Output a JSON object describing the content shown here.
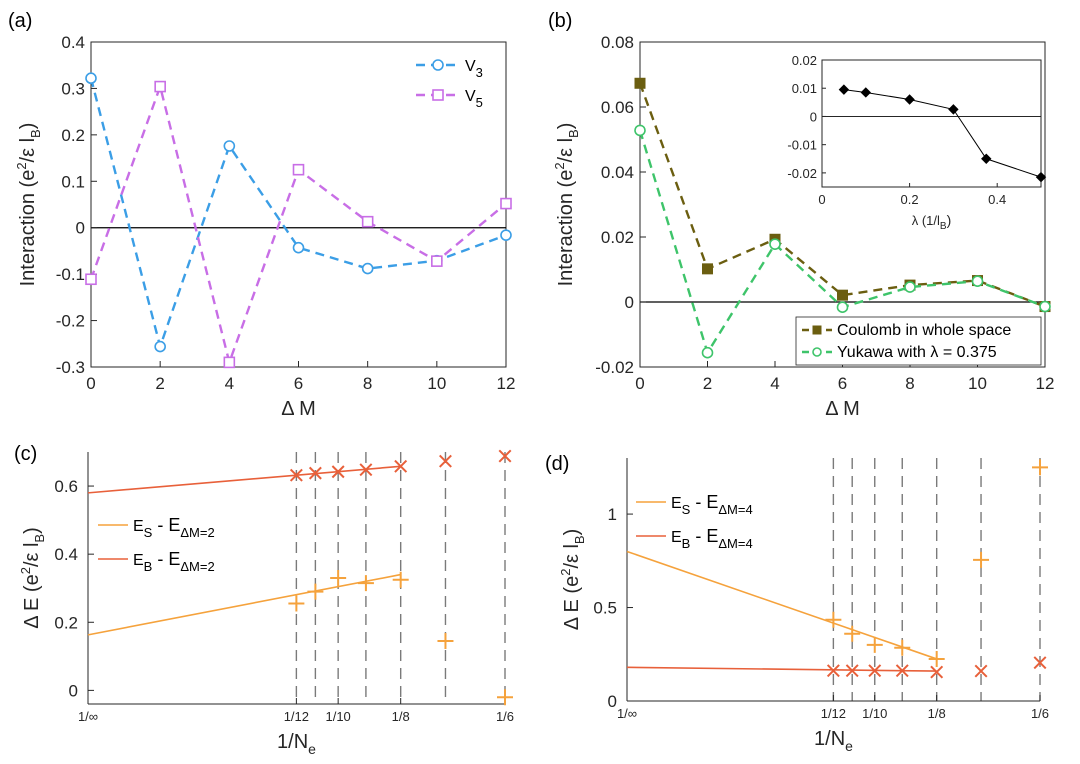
{
  "chart_data": [
    {
      "id": "a",
      "panel_label": "(a)",
      "type": "line",
      "xlabel": "Δ M",
      "ylabel_main": "Interaction (e",
      "ylabel_sup": "2",
      "ylabel_mid": "/ε l",
      "ylabel_sub": "B",
      "ylabel_end": ")",
      "xlim": [
        0,
        12
      ],
      "ylim": [
        -0.3,
        0.4
      ],
      "xticks": [
        0,
        2,
        4,
        6,
        8,
        10,
        12
      ],
      "yticks": [
        -0.3,
        -0.2,
        -0.1,
        0,
        0.1,
        0.2,
        0.3,
        0.4
      ],
      "ytick_labels": [
        "-0.3",
        "-0.2",
        "-0.1",
        "0",
        "0.1",
        "0.2",
        "0.3",
        "0.4"
      ],
      "zero_line": true,
      "legend_position": "top-right",
      "series": [
        {
          "name": "V",
          "name_sub": "3",
          "color": "#3b9ee6",
          "marker": "circle",
          "dashed": true,
          "x": [
            0,
            2,
            4,
            6,
            8,
            10,
            12
          ],
          "y": [
            0.322,
            -0.256,
            0.176,
            -0.043,
            -0.088,
            -0.071,
            -0.016
          ]
        },
        {
          "name": "V",
          "name_sub": "5",
          "color": "#c86ee6",
          "marker": "square",
          "dashed": true,
          "x": [
            0,
            2,
            4,
            6,
            8,
            10,
            12
          ],
          "y": [
            -0.111,
            0.304,
            -0.29,
            0.125,
            0.013,
            -0.072,
            0.052
          ]
        }
      ]
    },
    {
      "id": "b",
      "panel_label": "(b)",
      "type": "line",
      "xlabel": "Δ M",
      "ylabel_main": "Interaction (e",
      "ylabel_sup": "2",
      "ylabel_mid": "/ε l",
      "ylabel_sub": "B",
      "ylabel_end": ")",
      "xlim": [
        0,
        12
      ],
      "ylim": [
        -0.02,
        0.08
      ],
      "xticks": [
        0,
        2,
        4,
        6,
        8,
        10,
        12
      ],
      "yticks": [
        -0.02,
        0,
        0.02,
        0.04,
        0.06,
        0.08
      ],
      "ytick_labels": [
        "-0.02",
        "0",
        "0.02",
        "0.04",
        "0.06",
        "0.08"
      ],
      "zero_line": true,
      "legend_position": "bottom-right",
      "series": [
        {
          "name": "Coulomb in whole space",
          "color": "#6b5e10",
          "marker": "square-filled",
          "dashed": true,
          "x": [
            0,
            2,
            4,
            6,
            8,
            10,
            12
          ],
          "y": [
            0.0673,
            0.0102,
            0.0193,
            0.0021,
            0.0052,
            0.0066,
            -0.0014
          ]
        },
        {
          "name": "Yukawa with λ = 0.375",
          "color": "#3ec46a",
          "marker": "circle",
          "dashed": true,
          "x": [
            0,
            2,
            4,
            6,
            8,
            10,
            12
          ],
          "y": [
            0.0528,
            -0.0156,
            0.0178,
            -0.0016,
            0.0046,
            0.0064,
            -0.0014
          ]
        }
      ],
      "inset": {
        "xlabel": "λ (1/l",
        "xlabel_sub": "B",
        "xlabel_end": ")",
        "xlim": [
          0,
          0.5
        ],
        "ylim": [
          -0.025,
          0.02
        ],
        "xticks": [
          0,
          0.2,
          0.4
        ],
        "xtick_labels": [
          "0",
          "0.2",
          "0.4"
        ],
        "yticks": [
          -0.02,
          -0.01,
          0,
          0.01,
          0.02
        ],
        "ytick_labels": [
          "-0.02",
          "-0.01",
          "0",
          "0.01",
          "0.02"
        ],
        "color": "#000000",
        "marker": "diamond",
        "x": [
          0.05,
          0.1,
          0.2,
          0.3,
          0.375,
          0.5
        ],
        "y": [
          0.0095,
          0.0085,
          0.006,
          0.0025,
          -0.015,
          -0.0215
        ]
      }
    },
    {
      "id": "c",
      "panel_label": "(c)",
      "type": "scatter",
      "xlabel": "1/N",
      "xlabel_sub": "e",
      "ylabel_main": "Δ E (e",
      "ylabel_sup": "2",
      "ylabel_mid": "/ε l",
      "ylabel_sub": "B",
      "ylabel_end": ")",
      "xlim": [
        0,
        0.1667
      ],
      "ylim": [
        -0.04,
        0.7
      ],
      "xticks": [
        0,
        0.0833,
        0.1,
        0.125,
        0.1667
      ],
      "xtick_labels": [
        "1/∞",
        "1/12",
        "1/10",
        "1/8",
        "1/6"
      ],
      "yticks": [
        0,
        0.2,
        0.4,
        0.6
      ],
      "ytick_labels": [
        "0",
        "0.2",
        "0.4",
        "0.6"
      ],
      "vlines": [
        0.0833,
        0.0909,
        0.1,
        0.1111,
        0.125,
        0.1429,
        0.1667
      ],
      "legend_position": "middle-left",
      "series": [
        {
          "name": "E",
          "name_sub": "S",
          "name_mid": " - E",
          "name_sub2": "ΔM=2",
          "color": "#f5a23c",
          "marker": "plus",
          "x": [
            0.0833,
            0.0909,
            0.1,
            0.1111,
            0.125,
            0.1429,
            0.1667
          ],
          "y": [
            0.255,
            0.29,
            0.33,
            0.315,
            0.325,
            0.145,
            -0.02
          ],
          "fit": {
            "x": [
              0,
              0.125
            ],
            "y": [
              0.163,
              0.34
            ]
          }
        },
        {
          "name": "E",
          "name_sub": "B",
          "name_mid": " - E",
          "name_sub2": "ΔM=2",
          "color": "#e8603a",
          "marker": "x",
          "x": [
            0.0833,
            0.0909,
            0.1,
            0.1111,
            0.125,
            0.1429,
            0.1667
          ],
          "y": [
            0.632,
            0.638,
            0.642,
            0.648,
            0.658,
            0.673,
            0.688
          ],
          "fit": {
            "x": [
              0,
              0.125
            ],
            "y": [
              0.58,
              0.658
            ]
          }
        }
      ]
    },
    {
      "id": "d",
      "panel_label": "(d)",
      "type": "scatter",
      "xlabel": "1/N",
      "xlabel_sub": "e",
      "ylabel_main": "Δ E (e",
      "ylabel_sup": "2",
      "ylabel_mid": "/ε l",
      "ylabel_sub": "B",
      "ylabel_end": ")",
      "xlim": [
        0,
        0.1667
      ],
      "ylim": [
        0,
        1.3
      ],
      "xticks": [
        0,
        0.0833,
        0.1,
        0.125,
        0.1667
      ],
      "xtick_labels": [
        "1/∞",
        "1/12",
        "1/10",
        "1/8",
        "1/6"
      ],
      "yticks": [
        0,
        0.5,
        1
      ],
      "ytick_labels": [
        "0",
        "0.5",
        "1"
      ],
      "vlines": [
        0.0833,
        0.0909,
        0.1,
        0.1111,
        0.125,
        0.1429,
        0.1667
      ],
      "legend_position": "top-left",
      "series": [
        {
          "name": "E",
          "name_sub": "S",
          "name_mid": " - E",
          "name_sub2": "ΔM=4",
          "color": "#f5a23c",
          "marker": "plus",
          "x": [
            0.0833,
            0.0909,
            0.1,
            0.1111,
            0.125,
            0.1429,
            0.1667
          ],
          "y": [
            0.435,
            0.36,
            0.3,
            0.285,
            0.225,
            0.755,
            1.25
          ],
          "fit": {
            "x": [
              0,
              0.125
            ],
            "y": [
              0.8,
              0.225
            ]
          }
        },
        {
          "name": "E",
          "name_sub": "B",
          "name_mid": " - E",
          "name_sub2": "ΔM=4",
          "color": "#e8603a",
          "marker": "x",
          "x": [
            0.0833,
            0.0909,
            0.1,
            0.1111,
            0.125,
            0.1429,
            0.1667
          ],
          "y": [
            0.162,
            0.162,
            0.162,
            0.162,
            0.155,
            0.16,
            0.205
          ],
          "fit": {
            "x": [
              0,
              0.125
            ],
            "y": [
              0.18,
              0.16
            ]
          }
        }
      ]
    }
  ]
}
